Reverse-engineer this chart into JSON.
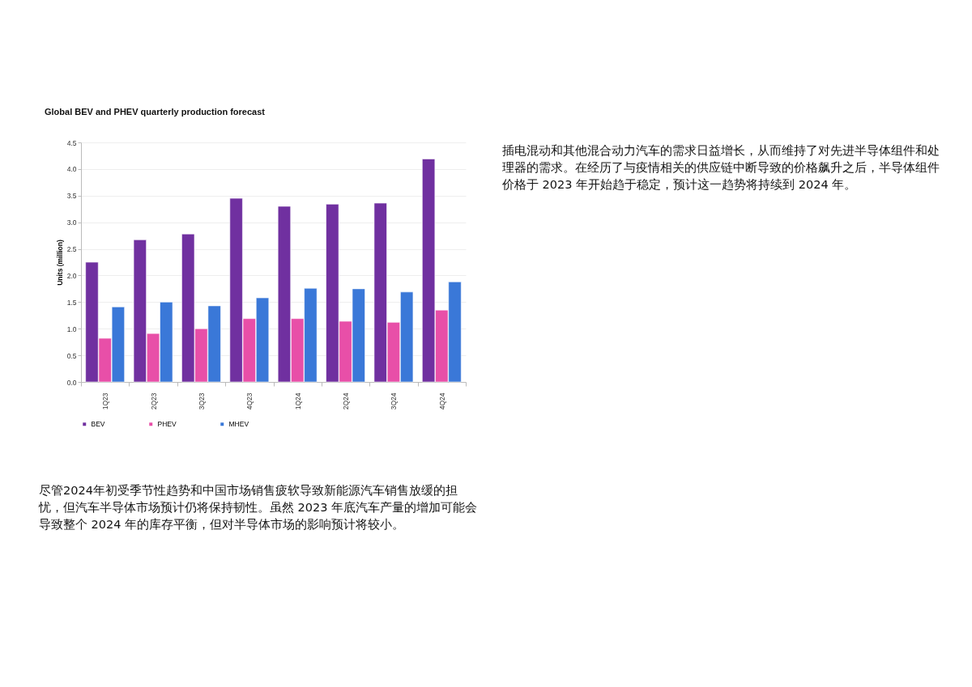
{
  "chart_data": {
    "type": "bar",
    "title": "Global BEV and PHEV quarterly production forecast",
    "ylabel": "Units (million)",
    "categories": [
      "1Q23",
      "2Q23",
      "3Q23",
      "4Q23",
      "1Q24",
      "2Q24",
      "3Q24",
      "4Q24"
    ],
    "series": [
      {
        "name": "BEV",
        "color": "#7030a0",
        "values": [
          2.25,
          2.67,
          2.78,
          3.45,
          3.3,
          3.34,
          3.36,
          4.19
        ]
      },
      {
        "name": "PHEV",
        "color": "#e84fa8",
        "values": [
          0.82,
          0.91,
          1.0,
          1.19,
          1.19,
          1.14,
          1.12,
          1.35
        ]
      },
      {
        "name": "MHEV",
        "color": "#3a78d8",
        "values": [
          1.41,
          1.5,
          1.43,
          1.58,
          1.76,
          1.75,
          1.69,
          1.88
        ]
      }
    ],
    "ylim": [
      0,
      4.5
    ],
    "yticks": [
      {
        "value": 0,
        "label": "0.0"
      },
      {
        "value": 0.5,
        "label": "0.5"
      },
      {
        "value": 1,
        "label": "1.0"
      },
      {
        "value": 1.5,
        "label": "1.5"
      },
      {
        "value": 2,
        "label": "2.0"
      },
      {
        "value": 2.5,
        "label": "2.5"
      },
      {
        "value": 3,
        "label": "3.0"
      },
      {
        "value": 3.5,
        "label": "3.5"
      },
      {
        "value": 4,
        "label": "4.0"
      },
      {
        "value": 4.5,
        "label": "4.5"
      }
    ],
    "grid": "y",
    "legend": "bottom",
    "annotations": [
      "插电混动和其他混合动力汽车的需求日益增长，从而维持了对先进半导体组件和处理器的需求。在经历了与疫情相关的供应链中断导致的价格飙升之后，半导体组件价格于 2023 年开始趋于稳定，预计这一趋势将持续到 2024 年。",
      "尽管2024年初受季节性趋势和中国市场销售疲软导致新能源汽车销售放缓的担忧，但汽车半导体市场预计仍将保持韧性。虽然 2023 年底汽车产量的增加可能会导致整个 2024 年的库存平衡，但对半导体市场的影响预计将较小。"
    ]
  }
}
